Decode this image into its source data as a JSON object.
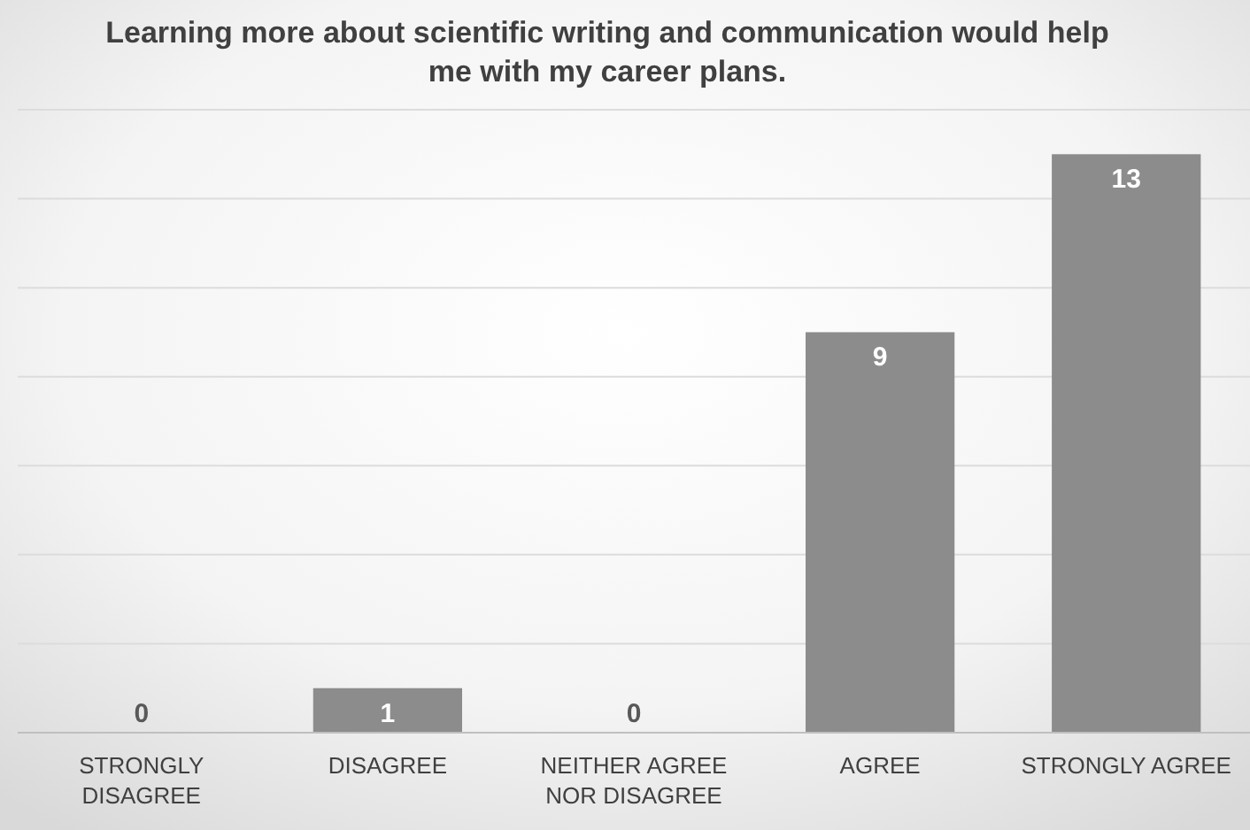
{
  "chart_data": {
    "type": "bar",
    "title": "Learning more about scientific writing and communication would help me with my career plans.",
    "categories": [
      "STRONGLY DISAGREE",
      "DISAGREE",
      "NEITHER AGREE NOR DISAGREE",
      "AGREE",
      "STRONGLY AGREE"
    ],
    "values": [
      0,
      1,
      0,
      9,
      13
    ],
    "color": "#8c8c8c",
    "data_labels": true,
    "grid": "y",
    "ylim": [
      0,
      14
    ],
    "yticks": [
      {
        "value": 0,
        "label": null
      },
      {
        "value": 2,
        "label": null
      },
      {
        "value": 4,
        "label": null
      },
      {
        "value": 6,
        "label": null
      },
      {
        "value": 8,
        "label": null
      },
      {
        "value": 10,
        "label": null
      },
      {
        "value": 12,
        "label": null
      },
      {
        "value": 14,
        "label": null
      }
    ],
    "tick_labels": "x"
  }
}
